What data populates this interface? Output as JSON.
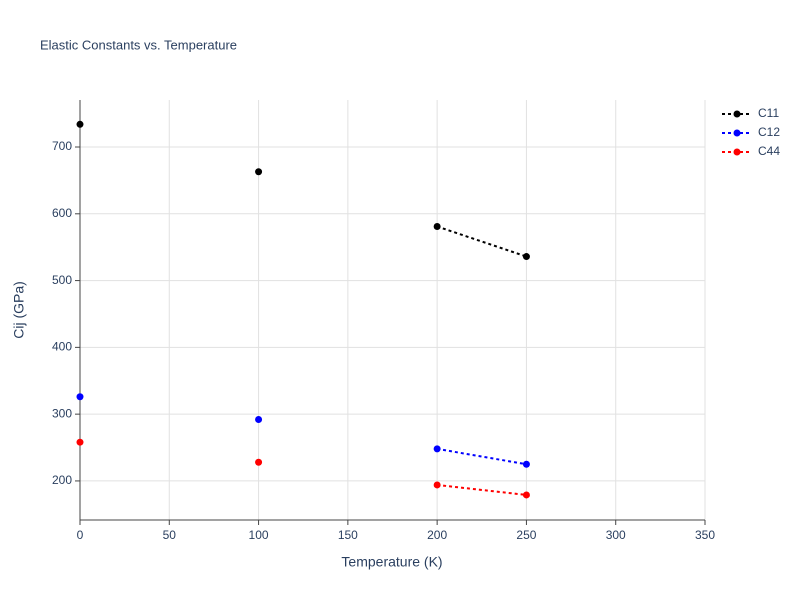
{
  "chart_data": {
    "type": "line",
    "title": "Elastic Constants vs. Temperature",
    "x_label": "Temperature (K)",
    "y_label": "Cij (GPa)",
    "x": [
      0,
      50,
      100,
      150,
      200,
      250
    ],
    "series": [
      {
        "name": "C11",
        "color": "#000000",
        "values": [
          734,
          null,
          663,
          null,
          581,
          536
        ]
      },
      {
        "name": "C12",
        "color": "#0000ff",
        "values": [
          326,
          null,
          292,
          null,
          248,
          225
        ]
      },
      {
        "name": "C44",
        "color": "#ff0000",
        "values": [
          258,
          null,
          228,
          null,
          194,
          179
        ]
      }
    ],
    "xlim": [
      0,
      350
    ],
    "xticks": [
      0,
      50,
      100,
      150,
      200,
      250,
      300,
      350
    ],
    "ylim": [
      141.5,
      770.4
    ],
    "yticks": [
      200,
      300,
      400,
      500,
      600,
      700
    ],
    "grid": true,
    "legend": "top-right",
    "line_style": "dotted"
  }
}
